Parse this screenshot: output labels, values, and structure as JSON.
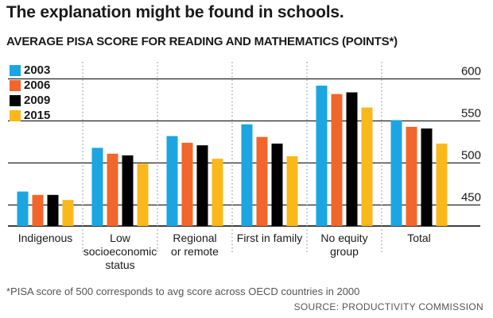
{
  "headline": "The explanation might be found in schools.",
  "footnote": "*PISA score of 500 corresponds to avg score across OECD countries in 2000",
  "source": "SOURCE: PRODUCTIVITY COMMISSION",
  "colors": {
    "2003": "#1ba6e2",
    "2006": "#f2662b",
    "2009": "#000000",
    "2015": "#fbb81b",
    "grid": "#000000",
    "divider": "#999999"
  },
  "chart_data": {
    "type": "bar",
    "title": "AVERAGE PISA SCORE FOR READING AND MATHEMATICS (POINTS*)",
    "xlabel": "",
    "ylabel": "",
    "ylim": [
      425,
      600
    ],
    "yticks": [
      450,
      500,
      550,
      600
    ],
    "grid": true,
    "legend_position": "top-left",
    "categories": [
      [
        "Indigenous"
      ],
      [
        "Low",
        "socioeconomic",
        "status"
      ],
      [
        "Regional",
        "or remote"
      ],
      [
        "First in family"
      ],
      [
        "No equity",
        "group"
      ],
      [
        "Total"
      ]
    ],
    "series": [
      {
        "name": "2003",
        "values": [
          466,
          518,
          532,
          546,
          592,
          551
        ]
      },
      {
        "name": "2006",
        "values": [
          462,
          511,
          524,
          531,
          582,
          543
        ]
      },
      {
        "name": "2009",
        "values": [
          462,
          509,
          521,
          523,
          584,
          541
        ]
      },
      {
        "name": "2015",
        "values": [
          456,
          499,
          505,
          508,
          566,
          523
        ]
      }
    ]
  }
}
